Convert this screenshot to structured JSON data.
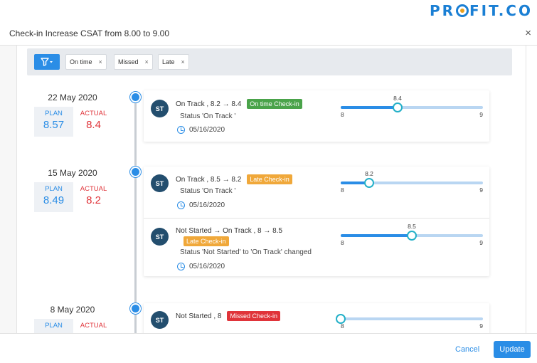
{
  "brand": {
    "logo_text_left": "PR",
    "logo_text_right": "FIT.CO"
  },
  "modal": {
    "title": "Check-in Increase CSAT from 8.00 to 9.00",
    "close_label": "×"
  },
  "colors": {
    "accent": "#2a8de6",
    "on_time": "#4aa34a",
    "late": "#f0a83a",
    "missed": "#e0343a",
    "avatar": "#234e6e"
  },
  "filters": {
    "icon": "filter-icon",
    "chips": [
      {
        "label": "On time",
        "remove": "×"
      },
      {
        "label": "Missed",
        "remove": "×"
      },
      {
        "label": "Late",
        "remove": "×"
      }
    ]
  },
  "groups": [
    {
      "date": "22 May 2020",
      "plan_label": "PLAN",
      "plan_value": "8.57",
      "actual_label": "ACTUAL",
      "actual_value": "8.4",
      "entries": [
        {
          "avatar": "ST",
          "title": "On Track , 8.2 → 8.4",
          "badge": "On time Check-in",
          "badge_type": "on_time",
          "status": "Status 'On Track '",
          "date": "05/16/2020",
          "slider": {
            "min": "8",
            "max": "9",
            "current": "8.4",
            "fraction": 0.4
          }
        }
      ]
    },
    {
      "date": "15 May 2020",
      "plan_label": "PLAN",
      "plan_value": "8.49",
      "actual_label": "ACTUAL",
      "actual_value": "8.2",
      "entries": [
        {
          "avatar": "ST",
          "title": "On Track , 8.5 → 8.2",
          "badge": "Late Check-in",
          "badge_type": "late",
          "status": "Status 'On Track '",
          "date": "05/16/2020",
          "slider": {
            "min": "8",
            "max": "9",
            "current": "8.2",
            "fraction": 0.2
          }
        },
        {
          "avatar": "ST",
          "title": "Not Started → On Track , 8 → 8.5",
          "badge": "Late Check-in",
          "badge_type": "late",
          "status": "Status 'Not Started' to 'On Track' changed",
          "date": "05/16/2020",
          "slider": {
            "min": "8",
            "max": "9",
            "current": "8.5",
            "fraction": 0.5
          }
        }
      ]
    },
    {
      "date": "8 May 2020",
      "plan_label": "PLAN",
      "plan_value": "",
      "actual_label": "ACTUAL",
      "actual_value": "",
      "entries": [
        {
          "avatar": "ST",
          "title": "Not Started , 8",
          "badge": "Missed Check-in",
          "badge_type": "missed",
          "status": "",
          "date": "",
          "slider": {
            "min": "8",
            "max": "9",
            "current": "",
            "fraction": 0.0
          }
        }
      ]
    }
  ],
  "footer": {
    "cancel_label": "Cancel",
    "update_label": "Update"
  }
}
